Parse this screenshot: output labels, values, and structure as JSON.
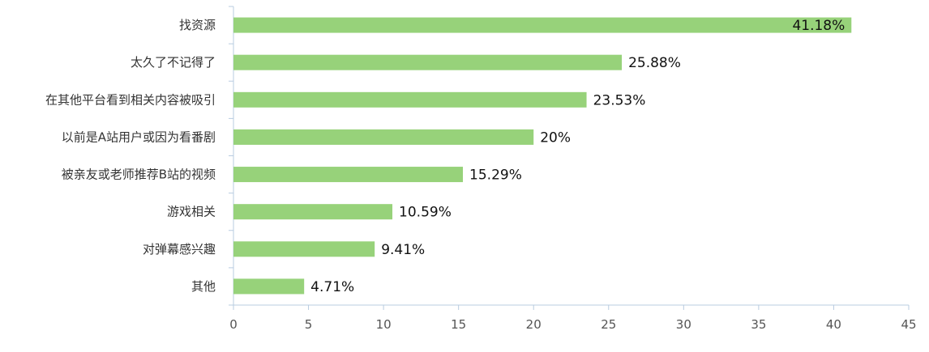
{
  "chart_data": {
    "type": "bar",
    "orientation": "horizontal",
    "categories": [
      "找资源",
      "太久了不记得了",
      "在其他平台看到相关内容被吸引",
      "以前是A站用户或因为看番剧",
      "被亲友或老师推荐B站的视频",
      "游戏相关",
      "对弹幕感兴趣",
      "其他"
    ],
    "values": [
      41.18,
      25.88,
      23.53,
      20,
      15.29,
      10.59,
      9.41,
      4.71
    ],
    "value_labels": [
      "41.18%",
      "25.88%",
      "23.53%",
      "20%",
      "15.29%",
      "10.59%",
      "9.41%",
      "4.71%"
    ],
    "xlim": [
      0,
      45
    ],
    "xticks": [
      "0",
      "5",
      "10",
      "15",
      "20",
      "25",
      "30",
      "35",
      "40",
      "45"
    ],
    "title": "",
    "xlabel": "",
    "ylabel": "",
    "grid": false,
    "legend": "none",
    "bar_color": "#97d27a",
    "axis_color": "#b8cce0"
  }
}
